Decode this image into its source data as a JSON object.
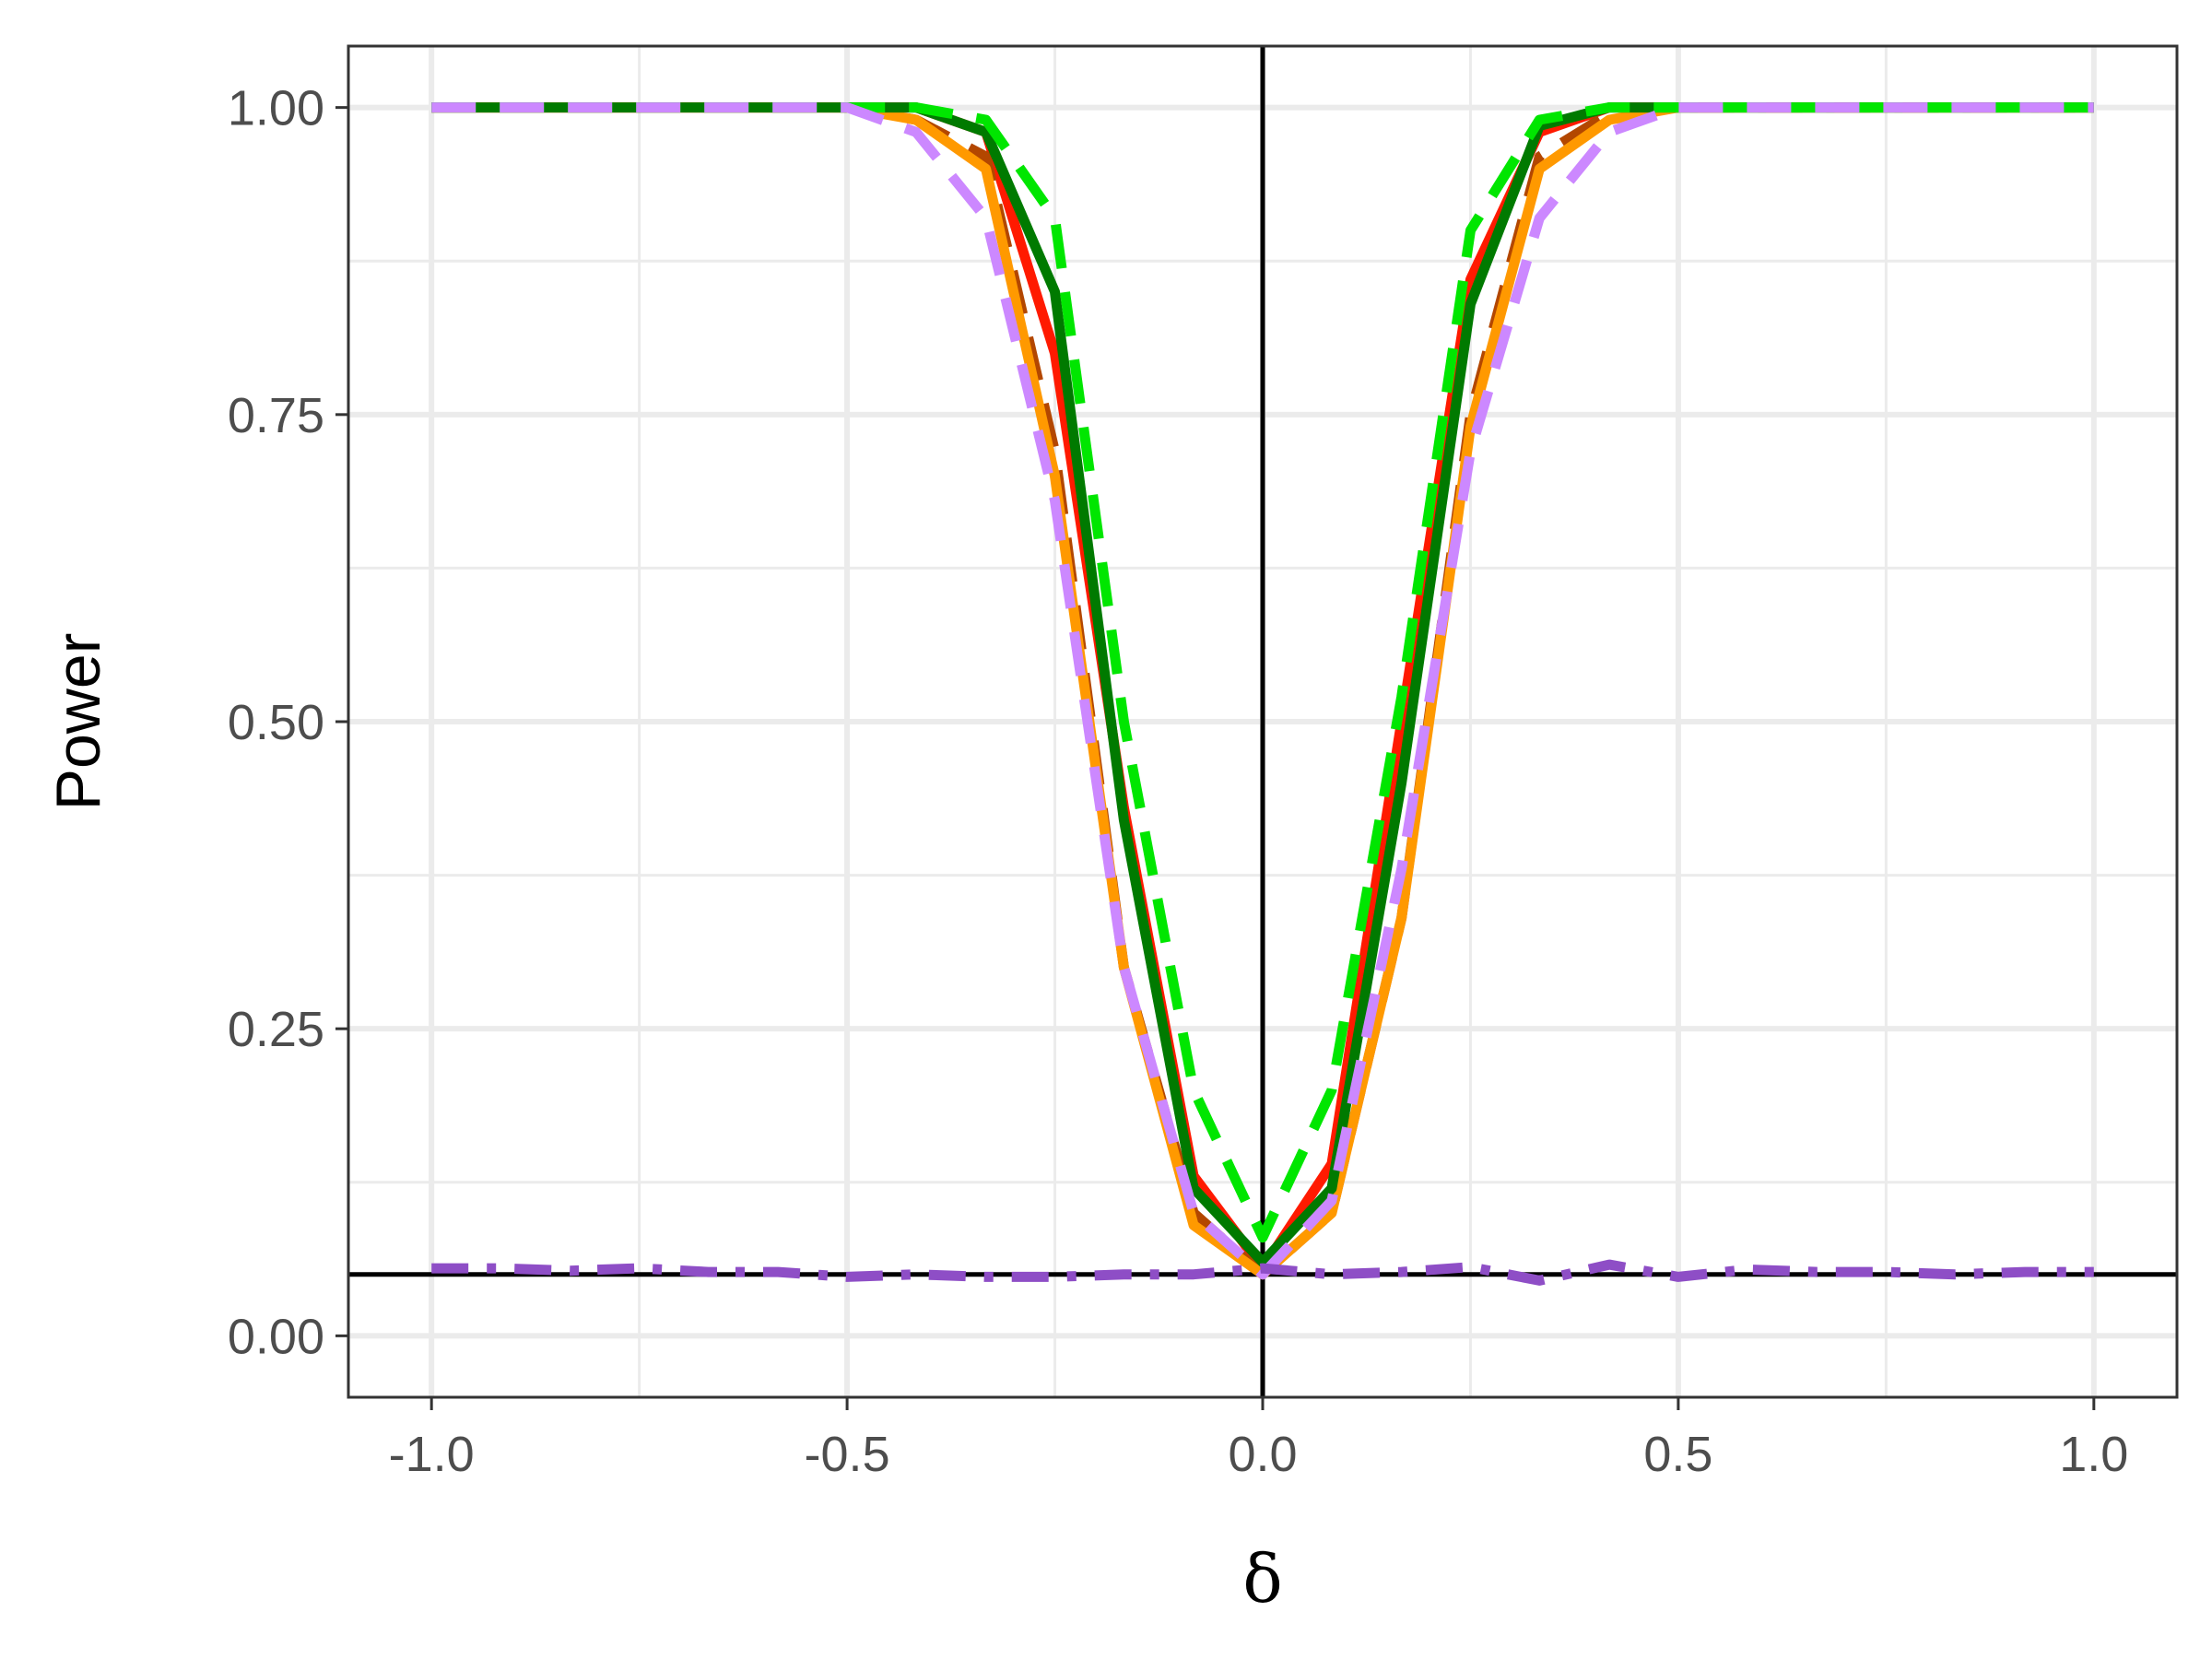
{
  "chart_data": {
    "type": "line",
    "title": "",
    "xlabel": "δ",
    "ylabel": "Power",
    "xlim": [
      -1.1,
      1.1
    ],
    "ylim": [
      -0.05,
      1.05
    ],
    "x_ticks": [
      "-1.0",
      "-0.5",
      "0.0",
      "0.5",
      "1.0"
    ],
    "y_ticks": [
      "0.00",
      "0.25",
      "0.50",
      "0.75",
      "1.00"
    ],
    "grid": true,
    "reference_lines": {
      "vertical_x": 0.0,
      "horizontal_y": 0.05
    },
    "x": [
      -1.0,
      -0.917,
      -0.833,
      -0.75,
      -0.667,
      -0.583,
      -0.5,
      -0.417,
      -0.333,
      -0.25,
      -0.167,
      -0.083,
      0.0,
      0.083,
      0.167,
      0.25,
      0.333,
      0.417,
      0.5,
      0.583,
      0.667,
      0.75,
      0.833,
      0.917,
      1.0
    ],
    "series": [
      {
        "color": "#ff1a00",
        "style": "solid",
        "values": [
          1,
          1,
          1,
          1,
          1,
          1,
          1,
          1,
          0.98,
          0.8,
          0.43,
          0.13,
          0.055,
          0.14,
          0.5,
          0.86,
          0.98,
          1,
          1,
          1,
          1,
          1,
          1,
          1,
          1
        ]
      },
      {
        "color": "#b34700",
        "style": "dashed",
        "values": [
          1,
          1,
          1,
          1,
          1,
          1,
          1,
          0.99,
          0.96,
          0.72,
          0.3,
          0.1,
          0.05,
          0.1,
          0.34,
          0.75,
          0.96,
          0.995,
          1,
          1,
          1,
          1,
          1,
          1,
          1
        ]
      },
      {
        "color": "#ff9900",
        "style": "solid",
        "values": [
          1,
          1,
          1,
          1,
          1,
          1,
          1,
          0.99,
          0.95,
          0.7,
          0.3,
          0.09,
          0.05,
          0.1,
          0.34,
          0.74,
          0.95,
          0.99,
          1,
          1,
          1,
          1,
          1,
          1,
          1
        ]
      },
      {
        "color": "#007a00",
        "style": "solid",
        "values": [
          1,
          1,
          1,
          1,
          1,
          1,
          1,
          1,
          0.98,
          0.85,
          0.42,
          0.12,
          0.06,
          0.12,
          0.45,
          0.84,
          0.985,
          1,
          1,
          1,
          1,
          1,
          1,
          1,
          1
        ]
      },
      {
        "color": "#00e600",
        "style": "dashed",
        "values": [
          1,
          1,
          1,
          1,
          1,
          1,
          1,
          1,
          0.99,
          0.91,
          0.5,
          0.2,
          0.08,
          0.2,
          0.52,
          0.9,
          0.99,
          1,
          1,
          1,
          1,
          1,
          1,
          1,
          1
        ]
      },
      {
        "color": "#cc88ff",
        "style": "dashed",
        "values": [
          1,
          1,
          1,
          1,
          1,
          1,
          1,
          0.98,
          0.91,
          0.68,
          0.3,
          0.1,
          0.05,
          0.11,
          0.38,
          0.72,
          0.91,
          0.98,
          1,
          1,
          1,
          1,
          1,
          1,
          1
        ]
      },
      {
        "color": "#8e4ec6",
        "style": "dashdot",
        "values": [
          0.055,
          0.055,
          0.053,
          0.055,
          0.052,
          0.052,
          0.048,
          0.05,
          0.048,
          0.048,
          0.05,
          0.05,
          0.055,
          0.05,
          0.052,
          0.056,
          0.045,
          0.058,
          0.048,
          0.054,
          0.052,
          0.052,
          0.05,
          0.052,
          0.052
        ]
      }
    ]
  }
}
